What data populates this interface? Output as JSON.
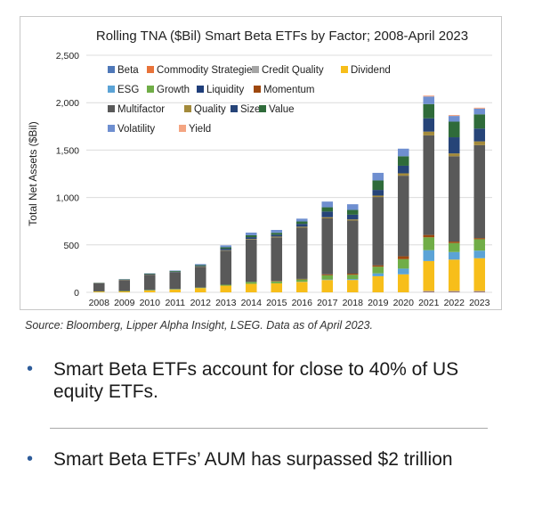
{
  "colors": {
    "bullet": "#2e5c9a",
    "text": "#1a1a1a",
    "source": "#333333",
    "frame": "#c8c8c8"
  },
  "source_note": "Source: Bloomberg, Lipper Alpha Insight, LSEG. Data as of April 2023.",
  "bullets": [
    "Smart Beta ETFs account for close to 40% of US equity ETFs.",
    "Smart Beta ETFs’ AUM has surpassed $2 trillion"
  ],
  "chart_data": {
    "type": "bar",
    "stacked": true,
    "title": "Rolling TNA ($Bil) Smart Beta ETFs by Factor; 2008-April 2023",
    "xlabel": "",
    "ylabel": "Total Net Assets ($Bil)",
    "ylim": [
      0,
      2500
    ],
    "yticks": [
      0,
      500,
      1000,
      1500,
      2000,
      2500
    ],
    "ytick_labels": [
      "0",
      "500",
      "1,000",
      "1,500",
      "2,000",
      "2,500"
    ],
    "grid": true,
    "legend_position": "top-left",
    "categories": [
      "2008",
      "2009",
      "2010",
      "2011",
      "2012",
      "2013",
      "2014",
      "2015",
      "2016",
      "2017",
      "2018",
      "2019",
      "2020",
      "2021",
      "2022",
      "2023"
    ],
    "series": [
      {
        "name": "Beta",
        "color": "#4f78b8",
        "values": [
          0,
          0,
          0,
          0,
          0,
          0,
          0,
          0,
          0,
          0,
          0,
          0,
          0,
          5,
          5,
          5
        ]
      },
      {
        "name": "Commodity Strategies",
        "color": "#e8733a",
        "values": [
          0,
          0,
          0,
          0,
          0,
          0,
          0,
          0,
          0,
          0,
          0,
          0,
          0,
          5,
          5,
          5
        ]
      },
      {
        "name": "Credit Quality",
        "color": "#a5a5a5",
        "values": [
          0,
          0,
          0,
          0,
          0,
          0,
          0,
          0,
          0,
          0,
          0,
          0,
          0,
          5,
          5,
          5
        ]
      },
      {
        "name": "Dividend",
        "color": "#f7be1a",
        "values": [
          8,
          10,
          20,
          30,
          45,
          70,
          90,
          95,
          110,
          130,
          130,
          170,
          190,
          315,
          330,
          345
        ]
      },
      {
        "name": "ESG",
        "color": "#5ba3d6",
        "values": [
          0,
          0,
          0,
          0,
          0,
          0,
          0,
          0,
          2,
          5,
          10,
          30,
          60,
          115,
          80,
          80
        ]
      },
      {
        "name": "Growth",
        "color": "#70ad47",
        "values": [
          2,
          4,
          5,
          5,
          5,
          10,
          20,
          20,
          25,
          45,
          45,
          70,
          100,
          135,
          95,
          120
        ]
      },
      {
        "name": "Liquidity",
        "color": "#1f3e7a",
        "values": [
          0,
          0,
          0,
          0,
          0,
          0,
          0,
          0,
          0,
          0,
          0,
          0,
          0,
          0,
          0,
          0
        ]
      },
      {
        "name": "Momentum",
        "color": "#9e480e",
        "values": [
          0,
          0,
          0,
          0,
          0,
          0,
          0,
          5,
          5,
          10,
          12,
          15,
          30,
          25,
          15,
          12
        ]
      },
      {
        "name": "Multifactor",
        "color": "#595959",
        "values": [
          88,
          115,
          160,
          175,
          220,
          360,
          445,
          460,
          540,
          590,
          560,
          720,
          850,
          1050,
          900,
          980
        ]
      },
      {
        "name": "Quality",
        "color": "#a38a3b",
        "values": [
          0,
          2,
          2,
          2,
          3,
          5,
          7,
          8,
          10,
          12,
          12,
          15,
          25,
          40,
          30,
          40
        ]
      },
      {
        "name": "Size",
        "color": "#264478",
        "values": [
          0,
          3,
          5,
          5,
          5,
          15,
          20,
          20,
          30,
          60,
          50,
          60,
          80,
          140,
          170,
          135
        ]
      },
      {
        "name": "Value",
        "color": "#2f6b3a",
        "values": [
          2,
          4,
          6,
          8,
          10,
          15,
          20,
          20,
          25,
          45,
          50,
          100,
          100,
          150,
          165,
          150
        ]
      },
      {
        "name": "Volatility",
        "color": "#6f8fd0",
        "values": [
          0,
          2,
          2,
          5,
          10,
          20,
          28,
          30,
          30,
          60,
          60,
          80,
          80,
          80,
          60,
          60
        ]
      },
      {
        "name": "Yield",
        "color": "#f4a582",
        "values": [
          0,
          0,
          0,
          0,
          0,
          0,
          0,
          0,
          0,
          0,
          0,
          0,
          0,
          10,
          10,
          10
        ]
      }
    ]
  }
}
